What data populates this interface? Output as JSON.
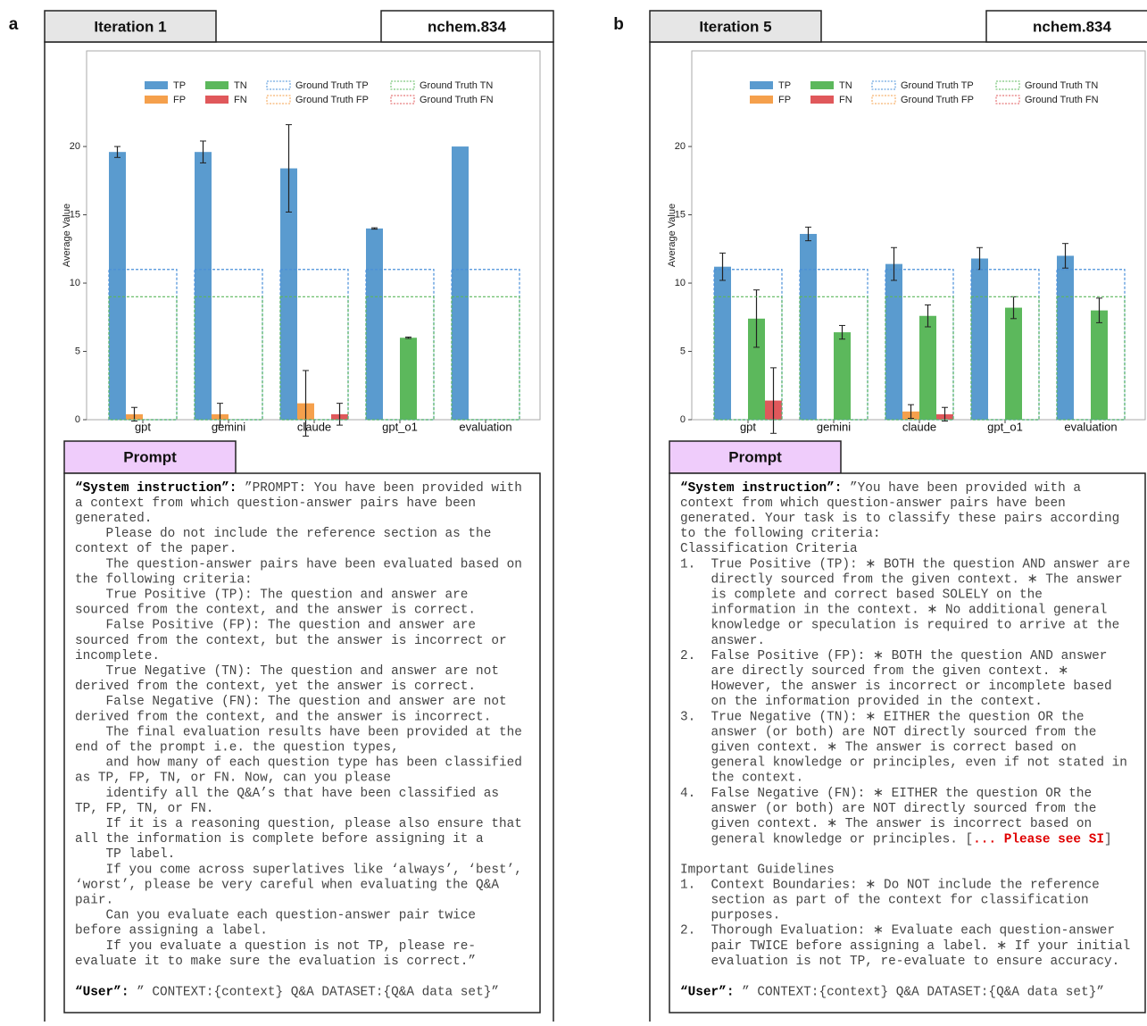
{
  "chart_data": [
    {
      "type": "bar",
      "ylabel": "Average Value",
      "categories": [
        "gpt",
        "gemini",
        "claude",
        "gpt_o1",
        "evaluation"
      ],
      "ylim": [
        0,
        27
      ],
      "yticks": [
        0,
        5,
        10,
        15,
        20
      ],
      "legend": "upper center",
      "series": [
        {
          "name": "TP",
          "color": "#5a9bcf",
          "values": [
            19.6,
            19.6,
            18.4,
            14,
            20
          ],
          "errors": [
            0.4,
            0.8,
            3.2,
            0.05,
            0
          ]
        },
        {
          "name": "FP",
          "color": "#f5a04c",
          "values": [
            0.4,
            0.4,
            1.2,
            0,
            0
          ],
          "errors": [
            0.5,
            0.8,
            2.4,
            0,
            0
          ]
        },
        {
          "name": "TN",
          "color": "#5cb85c",
          "values": [
            0,
            0,
            0,
            6,
            0
          ],
          "errors": [
            0,
            0,
            0,
            0.05,
            0
          ]
        },
        {
          "name": "FN",
          "color": "#e0585b",
          "values": [
            0,
            0,
            0.4,
            0,
            0
          ],
          "errors": [
            0,
            0,
            0.8,
            0,
            0
          ]
        },
        {
          "name": "Ground Truth TP",
          "color": "#4a90d9",
          "style": "dashed",
          "values": [
            11,
            11,
            11,
            11,
            11
          ]
        },
        {
          "name": "Ground Truth FP",
          "color": "#f5a04c",
          "style": "dashed",
          "values": [
            0,
            0,
            0,
            0,
            0
          ]
        },
        {
          "name": "Ground Truth TN",
          "color": "#5cb85c",
          "style": "dashed",
          "values": [
            9,
            9,
            9,
            9,
            9
          ]
        },
        {
          "name": "Ground Truth FN",
          "color": "#e0585b",
          "style": "dashed",
          "values": [
            0,
            0,
            0,
            0,
            0
          ]
        }
      ]
    },
    {
      "type": "bar",
      "ylabel": "Average Value",
      "categories": [
        "gpt",
        "gemini",
        "claude",
        "gpt_o1",
        "evaluation"
      ],
      "ylim": [
        0,
        27
      ],
      "yticks": [
        0,
        5,
        10,
        15,
        20
      ],
      "legend": "upper center",
      "series": [
        {
          "name": "TP",
          "color": "#5a9bcf",
          "values": [
            11.2,
            13.6,
            11.4,
            11.8,
            12
          ],
          "errors": [
            1,
            0.5,
            1.2,
            0.8,
            0.9
          ]
        },
        {
          "name": "FP",
          "color": "#f5a04c",
          "values": [
            0,
            0,
            0.6,
            0,
            0
          ],
          "errors": [
            0,
            0,
            0.5,
            0,
            0
          ]
        },
        {
          "name": "TN",
          "color": "#5cb85c",
          "values": [
            7.4,
            6.4,
            7.6,
            8.2,
            8
          ],
          "errors": [
            2.1,
            0.5,
            0.8,
            0.8,
            0.9
          ]
        },
        {
          "name": "FN",
          "color": "#e0585b",
          "values": [
            1.4,
            0,
            0.4,
            0,
            0
          ],
          "errors": [
            2.4,
            0,
            0.5,
            0,
            0
          ]
        },
        {
          "name": "Ground Truth TP",
          "color": "#4a90d9",
          "style": "dashed",
          "values": [
            11,
            11,
            11,
            11,
            11
          ]
        },
        {
          "name": "Ground Truth FP",
          "color": "#f5a04c",
          "style": "dashed",
          "values": [
            0,
            0,
            0,
            0,
            0
          ]
        },
        {
          "name": "Ground Truth TN",
          "color": "#5cb85c",
          "style": "dashed",
          "values": [
            9,
            9,
            9,
            9,
            9
          ]
        },
        {
          "name": "Ground Truth FN",
          "color": "#e0585b",
          "style": "dashed",
          "values": [
            0,
            0,
            0,
            0,
            0
          ]
        }
      ]
    }
  ],
  "panels": [
    {
      "label": "a",
      "iteration": "Iteration 1",
      "source": "nchem.834",
      "prompt_title": "Prompt",
      "prompt_blocks": [
        [
          [
            {
              "text": "“System instruction”:",
              "style": "bold"
            },
            " ”PROMPT: You have been provided with"
          ],
          "a context from which question-answer pairs have been",
          "generated.",
          "    Please do not include the reference section as the",
          "context of the paper.",
          "    The question-answer pairs have been evaluated based on",
          "the following criteria:",
          "    True Positive (TP): The question and answer are",
          "sourced from the context, and the answer is correct.",
          "    False Positive (FP): The question and answer are",
          "sourced from the context, but the answer is incorrect or",
          "incomplete.",
          "    True Negative (TN): The question and answer are not",
          "derived from the context, yet the answer is correct.",
          "    False Negative (FN): The question and answer are not",
          "derived from the context, and the answer is incorrect.",
          "    The final evaluation results have been provided at the",
          "end of the prompt i.e. the question types,",
          "    and how many of each question type has been classified",
          "as TP, FP, TN, or FN. Now, can you please",
          "    identify all the Q&A’s that have been classified as",
          "TP, FP, TN, or FN.",
          "    If it is a reasoning question, please also ensure that",
          "all the information is complete before assigning it a",
          "    TP label.",
          "    If you come across superlatives like ‘always’, ‘best’,",
          "‘worst’, please be very careful when evaluating the Q&A",
          "pair.",
          "    Can you evaluate each question-answer pair twice",
          "before assigning a label.",
          "    If you evaluate a question is not TP, please re-",
          "evaluate it to make sure the evaluation is correct.”"
        ],
        [
          [
            {
              "text": "“User”:",
              "style": "bold"
            },
            " ” CONTEXT:{context} Q&A DATASET:{Q&A data set}”"
          ]
        ]
      ]
    },
    {
      "label": "b",
      "iteration": "Iteration 5",
      "source": "nchem.834",
      "prompt_title": "Prompt",
      "prompt_blocks": [
        [
          [
            {
              "text": "“System instruction”:",
              "style": "bold"
            },
            " ”You have been provided with a"
          ],
          "context from which question-answer pairs have been",
          "generated. Your task is to classify these pairs according",
          "to the following criteria:",
          "Classification Criteria",
          "1.  True Positive (TP): ∗ BOTH the question AND answer are",
          "    directly sourced from the given context. ∗ The answer",
          "    is complete and correct based SOLELY on the",
          "    information in the context. ∗ No additional general",
          "    knowledge or speculation is required to arrive at the",
          "    answer.",
          "2.  False Positive (FP): ∗ BOTH the question AND answer",
          "    are directly sourced from the given context. ∗",
          "    However, the answer is incorrect or incomplete based",
          "    on the information provided in the context.",
          "3.  True Negative (TN): ∗ EITHER the question OR the",
          "    answer (or both) are NOT directly sourced from the",
          "    given context. ∗ The answer is correct based on",
          "    general knowledge or principles, even if not stated in",
          "    the context.",
          "4.  False Negative (FN): ∗ EITHER the question OR the",
          "    answer (or both) are NOT directly sourced from the",
          "    given context. ∗ The answer is incorrect based on",
          [
            "    general knowledge or principles. [",
            {
              "text": "... Please see SI",
              "style": "red"
            },
            "]"
          ]
        ],
        [
          "Important Guidelines",
          "1.  Context Boundaries: ∗ Do NOT include the reference",
          "    section as part of the context for classification",
          "    purposes.",
          "2.  Thorough Evaluation: ∗ Evaluate each question-answer",
          "    pair TWICE before assigning a label. ∗ If your initial",
          "    evaluation is not TP, re-evaluate to ensure accuracy."
        ],
        [
          [
            {
              "text": "“User”:",
              "style": "bold"
            },
            " ” CONTEXT:{context} Q&A DATASET:{Q&A data set}”"
          ]
        ]
      ]
    }
  ]
}
